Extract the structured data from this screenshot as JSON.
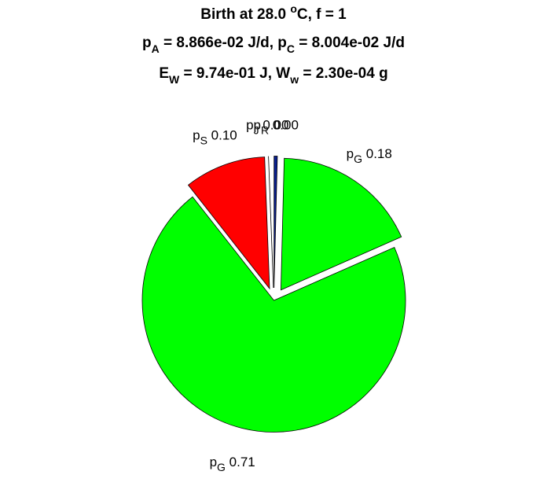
{
  "chart_data": {
    "type": "pie",
    "title": [
      [
        {
          "text": "Birth at 28.0 "
        },
        {
          "text": "o",
          "sup": true
        },
        {
          "text": "C, f = 1"
        }
      ],
      [
        {
          "text": "p"
        },
        {
          "text": "A",
          "sub": true
        },
        {
          "text": " = 8.866e-02 J/d, p"
        },
        {
          "text": "C",
          "sub": true
        },
        {
          "text": " = 8.004e-02 J/d"
        }
      ],
      [
        {
          "text": "E"
        },
        {
          "text": "W",
          "sub": true
        },
        {
          "text": " = 9.74e-01 J, W"
        },
        {
          "text": "w",
          "sub": true
        },
        {
          "text": " = 2.30e-04 g"
        }
      ]
    ],
    "slices": [
      {
        "symbol": "p",
        "subscript": "R",
        "value": 0.004,
        "value_label": "0.00",
        "color": "#0a1f8f",
        "explode": true
      },
      {
        "symbol": "p",
        "subscript": "G",
        "value": 0.18,
        "value_label": "0.18",
        "color": "#00ff00",
        "explode": true
      },
      {
        "symbol": "p",
        "subscript": "G",
        "value": 0.71,
        "value_label": "0.71",
        "color": "#00ff00",
        "explode": false
      },
      {
        "symbol": "p",
        "subscript": "S",
        "value": 0.1,
        "value_label": "0.10",
        "color": "#ff0000",
        "explode": true
      },
      {
        "symbol": "p",
        "subscript": "J",
        "value": 0,
        "value_label": "0.00",
        "color": "#ff00ff",
        "explode": true
      }
    ]
  }
}
